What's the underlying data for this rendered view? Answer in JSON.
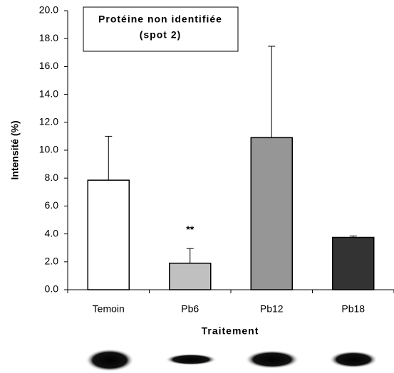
{
  "chart_data": {
    "type": "bar",
    "title": [
      "Protéine non identifiée",
      "(spot 2)"
    ],
    "x_label": "Traitement",
    "y_label": "Intensité (%)",
    "categories": [
      "Temoin",
      "Pb6",
      "Pb12",
      "Pb18"
    ],
    "values": [
      7.85,
      1.9,
      10.9,
      3.75
    ],
    "errors": [
      3.15,
      1.05,
      6.55,
      0.1
    ],
    "colors": [
      "#ffffff",
      "#c0c0c0",
      "#969696",
      "#333333"
    ],
    "annotations": [
      {
        "category": "Pb6",
        "text": "**"
      }
    ],
    "ylim": [
      0,
      20
    ],
    "yticks": [
      {
        "value": 0,
        "label": "0.0"
      },
      {
        "value": 2,
        "label": "2.0"
      },
      {
        "value": 4,
        "label": "4.0"
      },
      {
        "value": 6,
        "label": "6.0"
      },
      {
        "value": 8,
        "label": "8.0"
      },
      {
        "value": 10,
        "label": "10.0"
      },
      {
        "value": 12,
        "label": "12.0"
      },
      {
        "value": 14,
        "label": "14.0"
      },
      {
        "value": 16,
        "label": "16.0"
      },
      {
        "value": 18,
        "label": "18.0"
      },
      {
        "value": 20,
        "label": "20.0"
      }
    ]
  }
}
